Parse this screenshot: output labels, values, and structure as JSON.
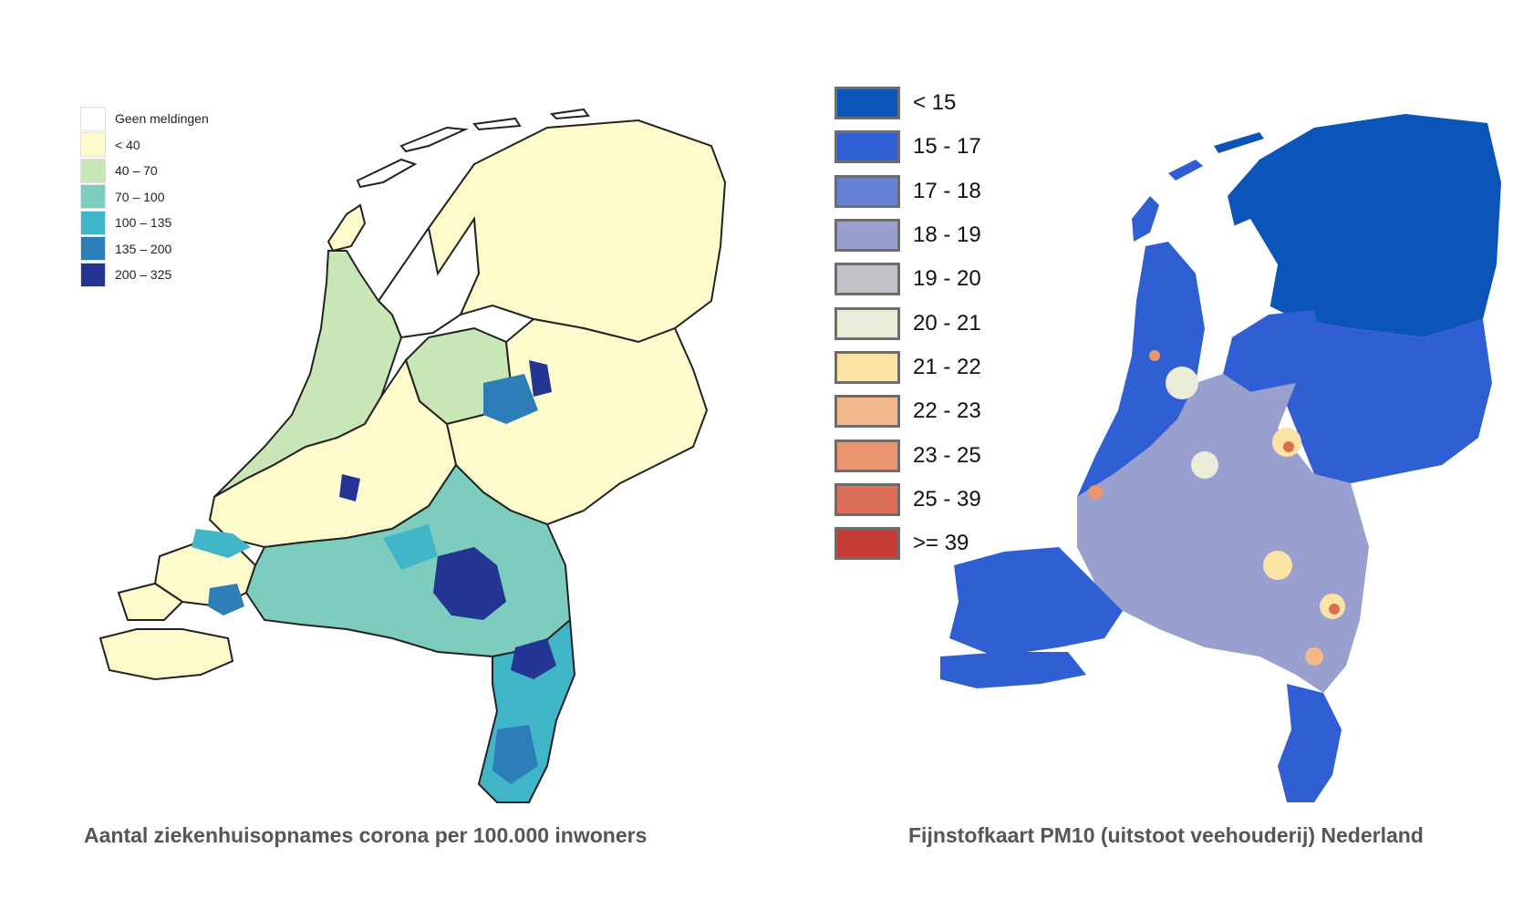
{
  "left_map": {
    "caption": "Aantal ziekenhuisopnames corona per 100.000 inwoners",
    "legend": [
      {
        "label": "Geen meldingen",
        "color": "#ffffff"
      },
      {
        "label": "< 40",
        "color": "#fdfbcc"
      },
      {
        "label": "40 – 70",
        "color": "#c8e6b6"
      },
      {
        "label": "70 – 100",
        "color": "#7ccdbd"
      },
      {
        "label": "100 – 135",
        "color": "#41b6c8"
      },
      {
        "label": "135 – 200",
        "color": "#2c7db8"
      },
      {
        "label": "200 – 325",
        "color": "#243493"
      }
    ]
  },
  "right_map": {
    "caption": "Fijnstofkaart PM10 (uitstoot veehouderij) Nederland",
    "legend": [
      {
        "label": "< 15",
        "color": "#0c55b8"
      },
      {
        "label": "15 - 17",
        "color": "#2f5fd3"
      },
      {
        "label": "17 - 18",
        "color": "#6682d6"
      },
      {
        "label": "18 - 19",
        "color": "#99a0d0"
      },
      {
        "label": "19 - 20",
        "color": "#c0c2c8"
      },
      {
        "label": "20 - 21",
        "color": "#ecedd8"
      },
      {
        "label": "21 - 22",
        "color": "#fbe3a6"
      },
      {
        "label": "22 - 23",
        "color": "#f1b98b"
      },
      {
        "label": "23 - 25",
        "color": "#e99670"
      },
      {
        "label": "25 - 39",
        "color": "#db6c55"
      },
      {
        "label": ">= 39",
        "color": "#c63b35"
      }
    ]
  }
}
